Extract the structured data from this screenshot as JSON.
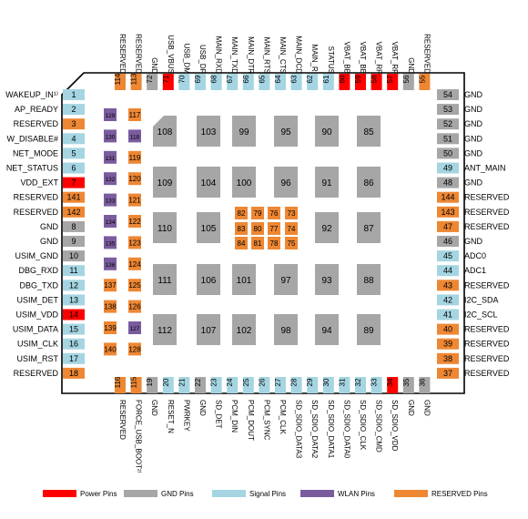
{
  "colors": {
    "power": "#ff0000",
    "gnd": "#a6a6a6",
    "signal": "#a5d5e2",
    "wlan": "#7a5c9e",
    "reserved": "#ee8733"
  },
  "left_pins": [
    {
      "num": "1",
      "label": "WAKEUP_IN¹⁾",
      "type": "signal"
    },
    {
      "num": "2",
      "label": "AP_READY",
      "type": "signal"
    },
    {
      "num": "3",
      "label": "RESERVED",
      "type": "reserved"
    },
    {
      "num": "4",
      "label": "W_DISABLE#",
      "type": "signal"
    },
    {
      "num": "5",
      "label": "NET_MODE",
      "type": "signal"
    },
    {
      "num": "6",
      "label": "NET_STATUS",
      "type": "signal"
    },
    {
      "num": "7",
      "label": "VDD_EXT",
      "type": "power"
    },
    {
      "num": "141",
      "label": "RESERVED",
      "type": "reserved"
    },
    {
      "num": "142",
      "label": "RESERVED",
      "type": "reserved"
    },
    {
      "num": "8",
      "label": "GND",
      "type": "gnd"
    },
    {
      "num": "9",
      "label": "GND",
      "type": "gnd"
    },
    {
      "num": "10",
      "label": "USIM_GND",
      "type": "gnd"
    },
    {
      "num": "11",
      "label": "DBG_RXD",
      "type": "signal"
    },
    {
      "num": "12",
      "label": "DBG_TXD",
      "type": "signal"
    },
    {
      "num": "13",
      "label": "USIM_DET",
      "type": "signal"
    },
    {
      "num": "14",
      "label": "USIM_VDD",
      "type": "power"
    },
    {
      "num": "15",
      "label": "USIM_DATA",
      "type": "signal"
    },
    {
      "num": "16",
      "label": "USIM_CLK",
      "type": "signal"
    },
    {
      "num": "17",
      "label": "USIM_RST",
      "type": "signal"
    },
    {
      "num": "18",
      "label": "RESERVED",
      "type": "reserved"
    }
  ],
  "right_pins": [
    {
      "num": "54",
      "label": "GND",
      "type": "gnd"
    },
    {
      "num": "53",
      "label": "GND",
      "type": "gnd"
    },
    {
      "num": "52",
      "label": "GND",
      "type": "gnd"
    },
    {
      "num": "51",
      "label": "GND",
      "type": "gnd"
    },
    {
      "num": "50",
      "label": "GND",
      "type": "gnd"
    },
    {
      "num": "49",
      "label": "ANT_MAIN",
      "type": "signal"
    },
    {
      "num": "48",
      "label": "GND",
      "type": "gnd"
    },
    {
      "num": "144",
      "label": "RESERVED",
      "type": "reserved"
    },
    {
      "num": "143",
      "label": "RESERVED",
      "type": "reserved"
    },
    {
      "num": "47",
      "label": "RESERVED",
      "type": "reserved"
    },
    {
      "num": "46",
      "label": "GND",
      "type": "gnd"
    },
    {
      "num": "45",
      "label": "ADC0",
      "type": "signal"
    },
    {
      "num": "44",
      "label": "ADC1",
      "type": "signal"
    },
    {
      "num": "43",
      "label": "RESERVED",
      "type": "reserved"
    },
    {
      "num": "42",
      "label": "I2C_SDA",
      "type": "signal"
    },
    {
      "num": "41",
      "label": "I2C_SCL",
      "type": "signal"
    },
    {
      "num": "40",
      "label": "RESERVED",
      "type": "reserved"
    },
    {
      "num": "39",
      "label": "RESERVED",
      "type": "reserved"
    },
    {
      "num": "38",
      "label": "RESERVED",
      "type": "reserved"
    },
    {
      "num": "37",
      "label": "RESERVED",
      "type": "reserved"
    }
  ],
  "top_pins": [
    {
      "num": "114",
      "label": "RESERVED",
      "type": "reserved"
    },
    {
      "num": "113",
      "label": "RESERVED",
      "type": "reserved"
    },
    {
      "num": "72",
      "label": "GND",
      "type": "gnd"
    },
    {
      "num": "71",
      "label": "USB_VBUS",
      "type": "power"
    },
    {
      "num": "70",
      "label": "USB_DM",
      "type": "signal"
    },
    {
      "num": "69",
      "label": "USB_DP",
      "type": "signal"
    },
    {
      "num": "68",
      "label": "MAIN_RXD",
      "type": "signal"
    },
    {
      "num": "67",
      "label": "MAIN_TXD",
      "type": "signal"
    },
    {
      "num": "66",
      "label": "MAIN_DTR",
      "type": "signal"
    },
    {
      "num": "65",
      "label": "MAIN_RTS",
      "type": "signal"
    },
    {
      "num": "64",
      "label": "MAIN_CTS",
      "type": "signal"
    },
    {
      "num": "63",
      "label": "MAIN_DCD",
      "type": "signal"
    },
    {
      "num": "62",
      "label": "MAIN_RI",
      "type": "signal"
    },
    {
      "num": "61",
      "label": "STATUS",
      "type": "signal"
    },
    {
      "num": "60",
      "label": "VBAT_BB",
      "type": "power"
    },
    {
      "num": "59",
      "label": "VBAT_BB",
      "type": "power"
    },
    {
      "num": "58",
      "label": "VBAT_RF",
      "type": "power"
    },
    {
      "num": "57",
      "label": "VBAT_RF",
      "type": "power"
    },
    {
      "num": "56",
      "label": "GND",
      "type": "gnd"
    },
    {
      "num": "55",
      "label": "RESERVED",
      "type": "reserved"
    }
  ],
  "bottom_pins": [
    {
      "num": "116",
      "label": "RESERVED",
      "type": "reserved"
    },
    {
      "num": "115",
      "label": "FORCE_USB_BOOT²⁾",
      "type": "reserved"
    },
    {
      "num": "19",
      "label": "GND",
      "type": "gnd"
    },
    {
      "num": "20",
      "label": "RESET_N",
      "type": "signal"
    },
    {
      "num": "21",
      "label": "PWRKEY",
      "type": "signal"
    },
    {
      "num": "22",
      "label": "GND",
      "type": "gnd"
    },
    {
      "num": "23",
      "label": "SD_DET",
      "type": "signal"
    },
    {
      "num": "24",
      "label": "PCM_DIN",
      "type": "signal"
    },
    {
      "num": "25",
      "label": "PCM_DOUT",
      "type": "signal"
    },
    {
      "num": "26",
      "label": "PCM_SYNC",
      "type": "signal"
    },
    {
      "num": "27",
      "label": "PCM_CLK",
      "type": "signal"
    },
    {
      "num": "28",
      "label": "SD_SDIO_DATA3",
      "type": "signal"
    },
    {
      "num": "29",
      "label": "SD_SDIO_DATA2",
      "type": "signal"
    },
    {
      "num": "30",
      "label": "SD_SDIO_DATA1",
      "type": "signal"
    },
    {
      "num": "31",
      "label": "SD_SDIO_DATA0",
      "type": "signal"
    },
    {
      "num": "32",
      "label": "SD_SDIO_CLK",
      "type": "signal"
    },
    {
      "num": "33",
      "label": "SD_SDIO_CMD",
      "type": "signal"
    },
    {
      "num": "34",
      "label": "SD_SDIO_VDD",
      "type": "power"
    },
    {
      "num": "35",
      "label": "GND",
      "type": "gnd"
    },
    {
      "num": "36",
      "label": "GND",
      "type": "gnd"
    }
  ],
  "inner_left_pins": [
    {
      "num": "129",
      "type": "wlan"
    },
    {
      "num": "117",
      "type": "reserved"
    },
    {
      "num": "130",
      "type": "wlan"
    },
    {
      "num": "118",
      "type": "wlan"
    },
    {
      "num": "131",
      "type": "wlan"
    },
    {
      "num": "119",
      "type": "reserved"
    },
    {
      "num": "132",
      "type": "wlan"
    },
    {
      "num": "120",
      "type": "reserved"
    },
    {
      "num": "133",
      "type": "wlan"
    },
    {
      "num": "121",
      "type": "reserved"
    },
    {
      "num": "134",
      "type": "wlan"
    },
    {
      "num": "122",
      "type": "reserved"
    },
    {
      "num": "135",
      "type": "wlan"
    },
    {
      "num": "123",
      "type": "reserved"
    },
    {
      "num": "136",
      "type": "wlan"
    },
    {
      "num": "124",
      "type": "reserved"
    },
    {
      "num": "137",
      "type": "reserved"
    },
    {
      "num": "125",
      "type": "reserved"
    },
    {
      "num": "138",
      "type": "reserved"
    },
    {
      "num": "126",
      "type": "reserved"
    },
    {
      "num": "139",
      "type": "reserved"
    },
    {
      "num": "127",
      "type": "wlan"
    },
    {
      "num": "140",
      "type": "reserved"
    },
    {
      "num": "128",
      "type": "reserved"
    }
  ],
  "gnd_pads": [
    "108",
    "103",
    "99",
    "95",
    "90",
    "85",
    "109",
    "104",
    "100",
    "96",
    "91",
    "86",
    "110",
    "105",
    "92",
    "87",
    "111",
    "106",
    "101",
    "97",
    "93",
    "88",
    "112",
    "107",
    "102",
    "98",
    "94",
    "89"
  ],
  "center_pins": [
    "82",
    "79",
    "76",
    "73",
    "83",
    "80",
    "77",
    "74",
    "84",
    "81",
    "78",
    "75"
  ],
  "legend": [
    {
      "label": "Power Pins",
      "type": "power"
    },
    {
      "label": "GND Pins",
      "type": "gnd"
    },
    {
      "label": "Signal Pins",
      "type": "signal"
    },
    {
      "label": "WLAN Pins",
      "type": "wlan"
    },
    {
      "label": "RESERVED Pins",
      "type": "reserved"
    }
  ]
}
